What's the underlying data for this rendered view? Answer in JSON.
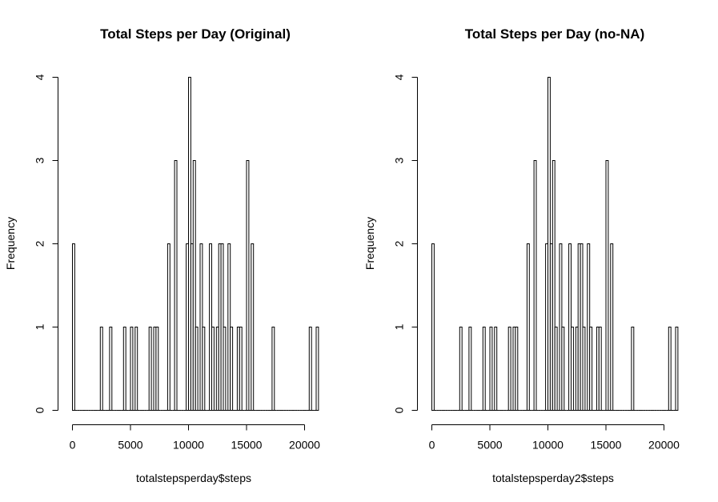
{
  "chart_data": [
    {
      "type": "bar",
      "title": "Total Steps per Day (Original)",
      "xlabel": "totalstepsperday$steps",
      "ylabel": "Frequency",
      "xlim": [
        0,
        21200
      ],
      "ylim": [
        0,
        4
      ],
      "xticks": [
        "0",
        "5000",
        "10000",
        "15000",
        "20000"
      ],
      "yticks": [
        "0",
        "1",
        "2",
        "3",
        "4"
      ],
      "bin_width": 200,
      "bins": [
        {
          "x0": 0,
          "count": 2
        },
        {
          "x0": 2400,
          "count": 1
        },
        {
          "x0": 3200,
          "count": 1
        },
        {
          "x0": 4400,
          "count": 1
        },
        {
          "x0": 5000,
          "count": 1
        },
        {
          "x0": 5400,
          "count": 1
        },
        {
          "x0": 6600,
          "count": 1
        },
        {
          "x0": 7000,
          "count": 1
        },
        {
          "x0": 7200,
          "count": 1
        },
        {
          "x0": 8200,
          "count": 2
        },
        {
          "x0": 8800,
          "count": 3
        },
        {
          "x0": 9800,
          "count": 2
        },
        {
          "x0": 10000,
          "count": 4
        },
        {
          "x0": 10200,
          "count": 2
        },
        {
          "x0": 10400,
          "count": 3
        },
        {
          "x0": 10600,
          "count": 1
        },
        {
          "x0": 11000,
          "count": 2
        },
        {
          "x0": 11200,
          "count": 1
        },
        {
          "x0": 11800,
          "count": 2
        },
        {
          "x0": 12000,
          "count": 1
        },
        {
          "x0": 12400,
          "count": 1
        },
        {
          "x0": 12600,
          "count": 2
        },
        {
          "x0": 12800,
          "count": 2
        },
        {
          "x0": 13000,
          "count": 1
        },
        {
          "x0": 13400,
          "count": 2
        },
        {
          "x0": 13600,
          "count": 1
        },
        {
          "x0": 14200,
          "count": 1
        },
        {
          "x0": 14400,
          "count": 1
        },
        {
          "x0": 15000,
          "count": 3
        },
        {
          "x0": 15400,
          "count": 2
        },
        {
          "x0": 17200,
          "count": 1
        },
        {
          "x0": 20400,
          "count": 1
        },
        {
          "x0": 21000,
          "count": 1
        }
      ]
    },
    {
      "type": "bar",
      "title": "Total Steps per Day (no-NA)",
      "xlabel": "totalstepsperday2$steps",
      "ylabel": "Frequency",
      "xlim": [
        0,
        21200
      ],
      "ylim": [
        0,
        4
      ],
      "xticks": [
        "0",
        "5000",
        "10000",
        "15000",
        "20000"
      ],
      "yticks": [
        "0",
        "1",
        "2",
        "3",
        "4"
      ],
      "bin_width": 200,
      "bins": [
        {
          "x0": 0,
          "count": 2
        },
        {
          "x0": 2400,
          "count": 1
        },
        {
          "x0": 3200,
          "count": 1
        },
        {
          "x0": 4400,
          "count": 1
        },
        {
          "x0": 5000,
          "count": 1
        },
        {
          "x0": 5400,
          "count": 1
        },
        {
          "x0": 6600,
          "count": 1
        },
        {
          "x0": 7000,
          "count": 1
        },
        {
          "x0": 7200,
          "count": 1
        },
        {
          "x0": 8200,
          "count": 2
        },
        {
          "x0": 8800,
          "count": 3
        },
        {
          "x0": 9800,
          "count": 2
        },
        {
          "x0": 10000,
          "count": 4
        },
        {
          "x0": 10200,
          "count": 2
        },
        {
          "x0": 10400,
          "count": 3
        },
        {
          "x0": 10600,
          "count": 1
        },
        {
          "x0": 11000,
          "count": 2
        },
        {
          "x0": 11200,
          "count": 1
        },
        {
          "x0": 11800,
          "count": 2
        },
        {
          "x0": 12000,
          "count": 1
        },
        {
          "x0": 12400,
          "count": 1
        },
        {
          "x0": 12600,
          "count": 2
        },
        {
          "x0": 12800,
          "count": 2
        },
        {
          "x0": 13000,
          "count": 1
        },
        {
          "x0": 13400,
          "count": 2
        },
        {
          "x0": 13600,
          "count": 1
        },
        {
          "x0": 14200,
          "count": 1
        },
        {
          "x0": 14400,
          "count": 1
        },
        {
          "x0": 15000,
          "count": 3
        },
        {
          "x0": 15400,
          "count": 2
        },
        {
          "x0": 17200,
          "count": 1
        },
        {
          "x0": 20400,
          "count": 1
        },
        {
          "x0": 21000,
          "count": 1
        }
      ]
    }
  ]
}
